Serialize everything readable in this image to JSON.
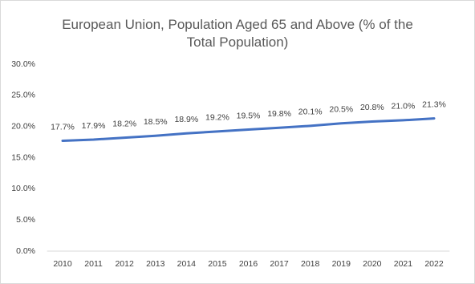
{
  "chart_data": {
    "type": "line",
    "title": "European Union, Population Aged 65 and Above (% of the Total Population)",
    "categories": [
      "2010",
      "2011",
      "2012",
      "2013",
      "2014",
      "2015",
      "2016",
      "2017",
      "2018",
      "2019",
      "2020",
      "2021",
      "2022"
    ],
    "values": [
      17.7,
      17.9,
      18.2,
      18.5,
      18.9,
      19.2,
      19.5,
      19.8,
      20.1,
      20.5,
      20.8,
      21.0,
      21.3
    ],
    "value_labels": [
      "17.7%",
      "17.9%",
      "18.2%",
      "18.5%",
      "18.9%",
      "19.2%",
      "19.5%",
      "19.8%",
      "20.1%",
      "20.5%",
      "20.8%",
      "21.0%",
      "21.3%"
    ],
    "color": "#4472c4",
    "ylim": [
      0,
      30
    ],
    "yticks": [
      {
        "value": 0,
        "label": "0.0%"
      },
      {
        "value": 5,
        "label": "5.0%"
      },
      {
        "value": 10,
        "label": "10.0%"
      },
      {
        "value": 15,
        "label": "15.0%"
      },
      {
        "value": 20,
        "label": "20.0%"
      },
      {
        "value": 25,
        "label": "25.0%"
      },
      {
        "value": 30,
        "label": "30.0%"
      }
    ],
    "grid": false
  }
}
